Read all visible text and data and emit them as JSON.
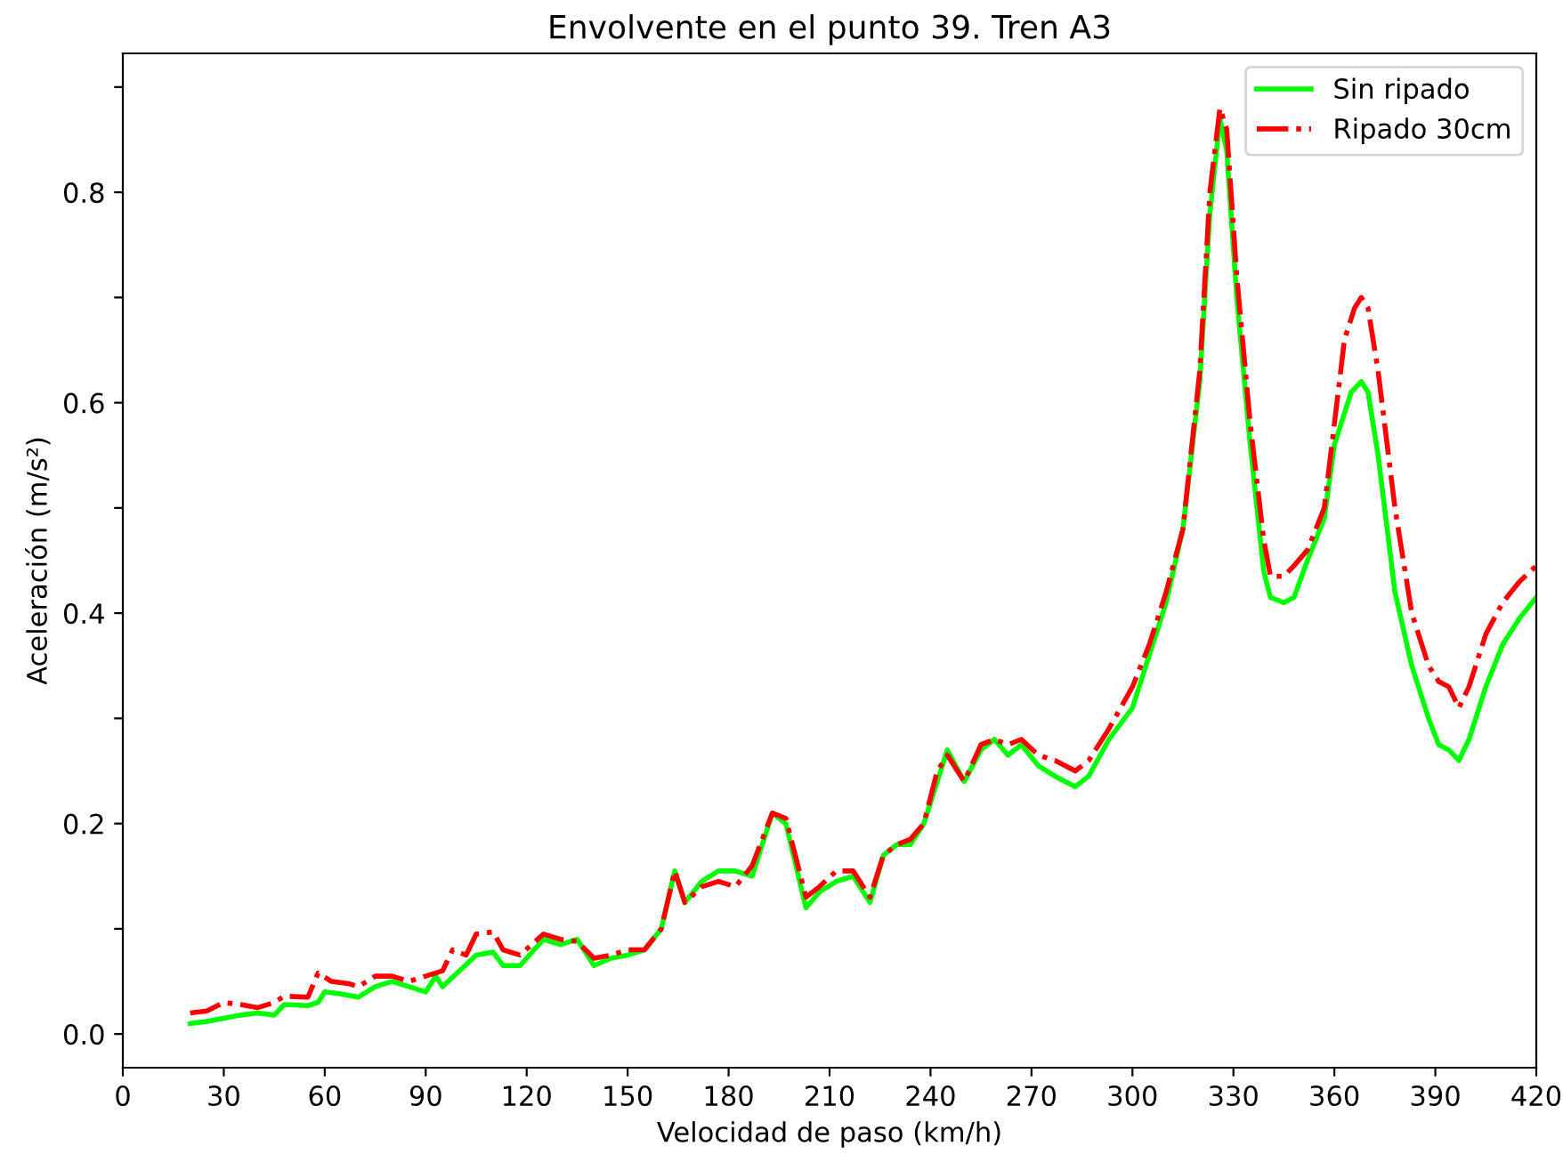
{
  "chart_data": {
    "type": "line",
    "title": "Envolvente en el punto 39. Tren A3",
    "xlabel": "Velocidad de paso (km/h)",
    "ylabel": "Aceleración (m/s²)",
    "xlim": [
      0,
      420
    ],
    "xticks": [
      0,
      30,
      60,
      90,
      120,
      150,
      180,
      210,
      240,
      270,
      300,
      330,
      360,
      390,
      420
    ],
    "ylim": [
      -0.032,
      0.932
    ],
    "yticks": [
      {
        "value": 0,
        "label": "0.0"
      },
      {
        "value": 0.1,
        "label": null
      },
      0.2,
      {
        "value": 0.3,
        "label": null
      },
      0.4,
      {
        "value": 0.5,
        "label": null
      },
      0.6,
      {
        "value": 0.7,
        "label": null
      },
      0.8,
      {
        "value": 0.9,
        "label": null
      }
    ],
    "grid": false,
    "legend": "top right",
    "series": [
      {
        "name": "Sin ripado",
        "color": "#00ff00",
        "line_style": "solid",
        "x": [
          20,
          25,
          30,
          35,
          40,
          45,
          48,
          55,
          58,
          60,
          65,
          70,
          75,
          80,
          85,
          90,
          93,
          95,
          100,
          105,
          110,
          113,
          118,
          125,
          130,
          135,
          140,
          145,
          150,
          155,
          160,
          164,
          167,
          172,
          177,
          182,
          187,
          193,
          197,
          203,
          207,
          212,
          217,
          222,
          226,
          230,
          234,
          238,
          242,
          245,
          250,
          255,
          259,
          263,
          267,
          272,
          277,
          283,
          287,
          293,
          300,
          305,
          310,
          315,
          320,
          323,
          326,
          328,
          331,
          335,
          339,
          341,
          345,
          348,
          352,
          357,
          360,
          365,
          368,
          370,
          373,
          378,
          383,
          388,
          391,
          394,
          397,
          400,
          405,
          410,
          415,
          420
        ],
        "values": [
          0.01,
          0.012,
          0.015,
          0.018,
          0.02,
          0.018,
          0.028,
          0.027,
          0.03,
          0.04,
          0.038,
          0.035,
          0.045,
          0.05,
          0.045,
          0.04,
          0.055,
          0.045,
          0.06,
          0.075,
          0.078,
          0.065,
          0.065,
          0.09,
          0.085,
          0.09,
          0.065,
          0.072,
          0.075,
          0.08,
          0.1,
          0.155,
          0.125,
          0.145,
          0.155,
          0.155,
          0.15,
          0.21,
          0.2,
          0.12,
          0.135,
          0.145,
          0.15,
          0.125,
          0.17,
          0.18,
          0.18,
          0.2,
          0.24,
          0.27,
          0.24,
          0.27,
          0.28,
          0.265,
          0.275,
          0.255,
          0.245,
          0.235,
          0.245,
          0.28,
          0.31,
          0.36,
          0.41,
          0.48,
          0.62,
          0.78,
          0.87,
          0.84,
          0.7,
          0.56,
          0.44,
          0.415,
          0.41,
          0.415,
          0.45,
          0.49,
          0.56,
          0.61,
          0.62,
          0.61,
          0.55,
          0.42,
          0.35,
          0.3,
          0.275,
          0.27,
          0.26,
          0.28,
          0.33,
          0.37,
          0.395,
          0.415
        ]
      },
      {
        "name": "Ripado 30cm",
        "color": "#ff0000",
        "line_style": "dashdot",
        "x": [
          20,
          25,
          30,
          35,
          40,
          45,
          48,
          55,
          58,
          62,
          67,
          70,
          75,
          80,
          85,
          90,
          95,
          98,
          102,
          105,
          110,
          113,
          118,
          125,
          130,
          135,
          140,
          145,
          150,
          155,
          160,
          164,
          167,
          172,
          177,
          182,
          187,
          193,
          197,
          203,
          207,
          212,
          217,
          222,
          226,
          230,
          234,
          238,
          242,
          245,
          250,
          255,
          259,
          263,
          267,
          272,
          277,
          283,
          287,
          293,
          300,
          305,
          310,
          315,
          320,
          323,
          326,
          328,
          331,
          335,
          339,
          341,
          345,
          348,
          352,
          357,
          360,
          363,
          366,
          368,
          370,
          373,
          378,
          383,
          388,
          391,
          394,
          397,
          400,
          405,
          410,
          415,
          420
        ],
        "values": [
          0.02,
          0.022,
          0.03,
          0.028,
          0.025,
          0.03,
          0.036,
          0.035,
          0.058,
          0.05,
          0.048,
          0.045,
          0.055,
          0.055,
          0.05,
          0.055,
          0.06,
          0.08,
          0.075,
          0.095,
          0.097,
          0.08,
          0.075,
          0.095,
          0.09,
          0.088,
          0.072,
          0.075,
          0.08,
          0.08,
          0.1,
          0.155,
          0.125,
          0.14,
          0.145,
          0.14,
          0.16,
          0.21,
          0.205,
          0.13,
          0.14,
          0.155,
          0.155,
          0.13,
          0.17,
          0.18,
          0.185,
          0.2,
          0.25,
          0.265,
          0.24,
          0.275,
          0.28,
          0.275,
          0.28,
          0.265,
          0.26,
          0.25,
          0.26,
          0.29,
          0.33,
          0.37,
          0.42,
          0.48,
          0.63,
          0.8,
          0.88,
          0.86,
          0.72,
          0.58,
          0.47,
          0.435,
          0.435,
          0.445,
          0.46,
          0.5,
          0.58,
          0.66,
          0.69,
          0.7,
          0.69,
          0.63,
          0.5,
          0.4,
          0.35,
          0.335,
          0.33,
          0.31,
          0.33,
          0.38,
          0.41,
          0.43,
          0.445
        ]
      }
    ]
  }
}
